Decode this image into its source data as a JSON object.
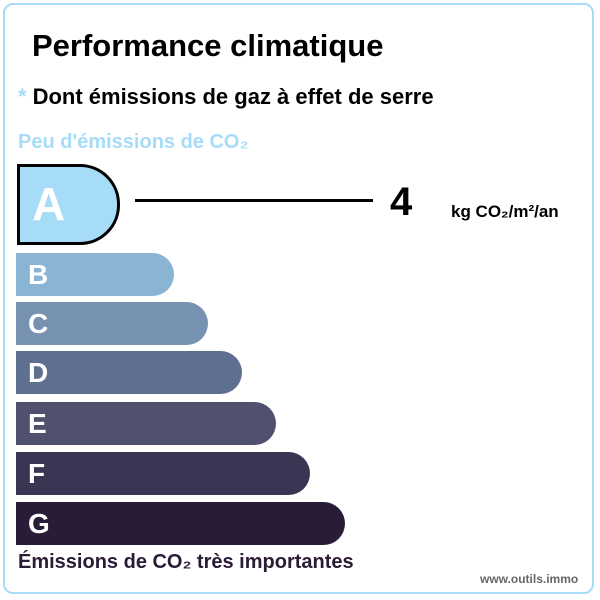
{
  "title": "Performance climatique",
  "subtitle_marker": "*",
  "subtitle": "Dont émissions de gaz à effet de serre",
  "low_label": "Peu d'émissions de CO₂",
  "high_label": "Émissions de CO₂ très importantes",
  "watermark": "www.outils.immo",
  "value": "4",
  "unit": "kg CO₂/m²/an",
  "active_class": "A",
  "classes": [
    {
      "letter": "A",
      "color": "#a6dcf7"
    },
    {
      "letter": "B",
      "color": "#8ab4d4"
    },
    {
      "letter": "C",
      "color": "#7792b1"
    },
    {
      "letter": "D",
      "color": "#5f6f90"
    },
    {
      "letter": "E",
      "color": "#4f516f"
    },
    {
      "letter": "F",
      "color": "#3a3552"
    },
    {
      "letter": "G",
      "color": "#2a1b36"
    }
  ]
}
